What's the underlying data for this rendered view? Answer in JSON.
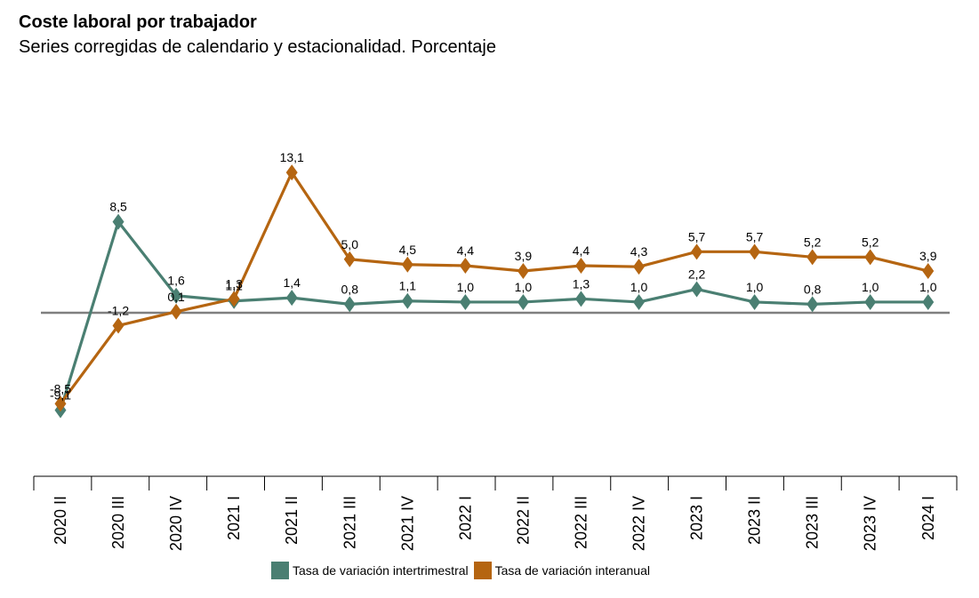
{
  "title": "Coste laboral por trabajador",
  "subtitle": "Series corregidas de calendario y estacionalidad. Porcentaje",
  "chart_data": {
    "type": "line",
    "categories": [
      "2020 II",
      "2020 III",
      "2020 IV",
      "2021 I",
      "2021 II",
      "2021 III",
      "2021 IV",
      "2022 I",
      "2022 II",
      "2022 III",
      "2022 IV",
      "2023 I",
      "2023 II",
      "2023 III",
      "2023 IV",
      "2024 I"
    ],
    "series": [
      {
        "name": "Tasa de variación intertrimestral",
        "color": "#4a7f72",
        "values": [
          -9.1,
          8.5,
          1.6,
          1.1,
          1.4,
          0.8,
          1.1,
          1.0,
          1.0,
          1.3,
          1.0,
          2.2,
          1.0,
          0.8,
          1.0,
          1.0
        ],
        "labels": [
          "-9,1",
          "8,5",
          "1,6",
          "1,1",
          "1,4",
          "0,8",
          "1,1",
          "1,0",
          "1,0",
          "1,3",
          "1,0",
          "2,2",
          "1,0",
          "0,8",
          "1,0",
          "1,0"
        ]
      },
      {
        "name": "Tasa de variación interanual",
        "color": "#b56511",
        "values": [
          -8.5,
          -1.2,
          0.1,
          1.3,
          13.1,
          5.0,
          4.5,
          4.4,
          3.9,
          4.4,
          4.3,
          5.7,
          5.7,
          5.2,
          5.2,
          3.9
        ],
        "labels": [
          "-8,5",
          "-1,2",
          "0,1",
          "1,3",
          "13,1",
          "5,0",
          "4,5",
          "4,4",
          "3,9",
          "4,4",
          "4,3",
          "5,7",
          "5,7",
          "5,2",
          "5,2",
          "3,9"
        ]
      }
    ],
    "zero_line": true,
    "legend_position": "bottom"
  }
}
